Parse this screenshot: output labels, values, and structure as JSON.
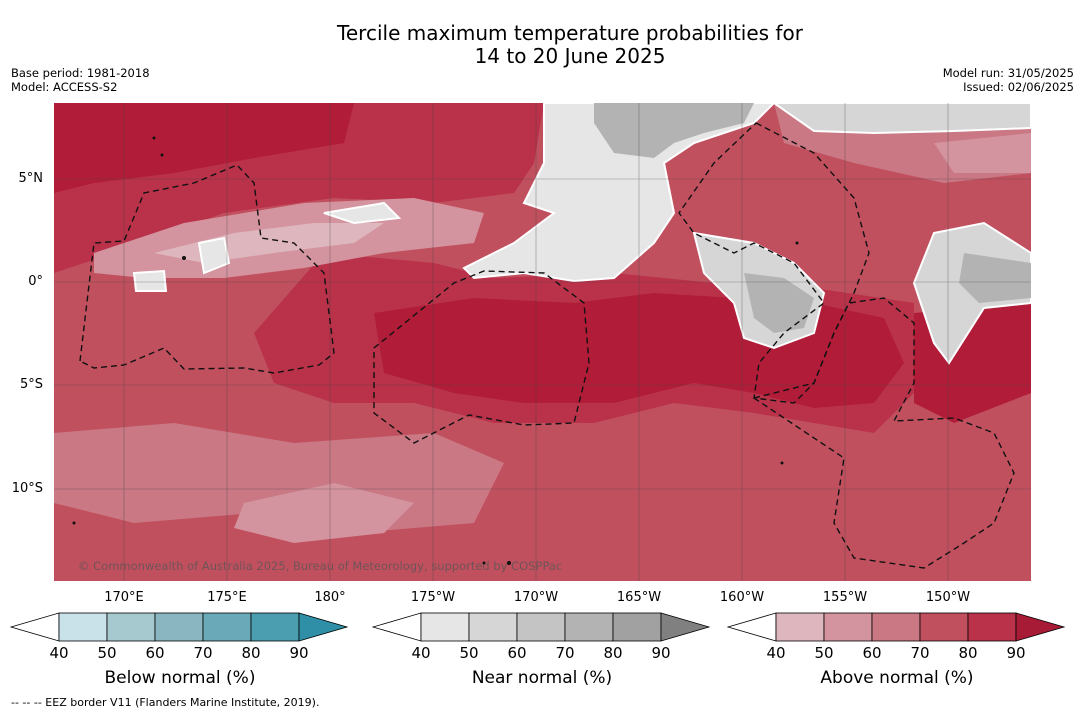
{
  "title_line1": "Tercile maximum temperature probabilities for",
  "title_line2": "14 to 20 June 2025",
  "base_period": "Base period: 1981-2018",
  "model": "Model: ACCESS-S2",
  "model_run": "Model run: 31/05/2025",
  "issued": "Issued: 02/06/2025",
  "lat_labels": [
    "5°N",
    "0°",
    "5°S",
    "10°S"
  ],
  "lon_labels": [
    "170°E",
    "175°E",
    "180°",
    "175°W",
    "170°W",
    "165°W",
    "160°W",
    "155°W",
    "150°W"
  ],
  "copyright": "© Commonwealth of Australia 2025, Bureau of Meteorology, supported by COSPPac",
  "colorbars": [
    {
      "label": "Below normal (%)",
      "ticks": [
        "40",
        "50",
        "60",
        "70",
        "80",
        "90"
      ],
      "colors": [
        "#ffffff",
        "#c9e1e8",
        "#a6c8cf",
        "#89b6c0",
        "#6aa9b8",
        "#4a9eb0",
        "#2e8fa6"
      ]
    },
    {
      "label": "Near normal (%)",
      "ticks": [
        "40",
        "50",
        "60",
        "70",
        "80",
        "90"
      ],
      "colors": [
        "#ffffff",
        "#e6e6e6",
        "#d6d6d6",
        "#c4c4c4",
        "#b3b3b3",
        "#a1a1a1",
        "#808080"
      ]
    },
    {
      "label": "Above normal (%)",
      "ticks": [
        "40",
        "50",
        "60",
        "70",
        "80",
        "90"
      ],
      "colors": [
        "#ffffff",
        "#deb6bd",
        "#d4949f",
        "#c97884",
        "#c1505f",
        "#b9324a",
        "#a81b36"
      ]
    }
  ],
  "footer": "--  --  -- EEZ border V11 (Flanders Marine Institute, 2019)."
}
